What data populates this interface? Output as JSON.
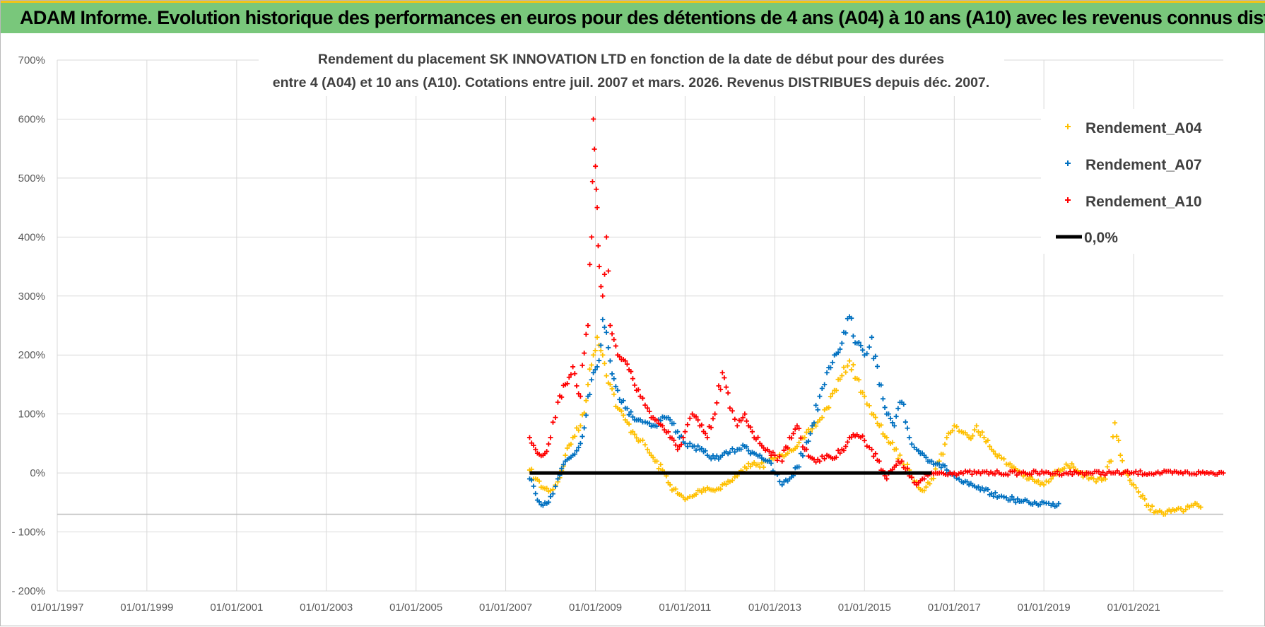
{
  "header": {
    "title": "ADAM Informe. Evolution historique des performances en euros pour des détentions de 4 ans (A04) à 10 ans (A10) avec les revenus connus distribués"
  },
  "chart_data": {
    "type": "scatter",
    "title_line1": "Rendement du placement SK INNOVATION LTD en fonction de la date de début pour des durées",
    "title_line2": "entre 4 (A04) et 10 ans (A10).  Cotations entre juil. 2007 et mars. 2026. Revenus DISTRIBUES depuis déc. 2007.",
    "xlabel": "",
    "ylabel": "",
    "x_range": [
      "1997-01-01",
      "2023-01-01"
    ],
    "x_tick_labels": [
      "01/01/1997",
      "01/01/1999",
      "01/01/2001",
      "01/01/2003",
      "01/01/2005",
      "01/01/2007",
      "01/01/2009",
      "01/01/2011",
      "01/01/2013",
      "01/01/2015",
      "01/01/2017",
      "01/01/2019",
      "01/01/2021"
    ],
    "y_range": [
      -200,
      700
    ],
    "y_tick_values": [
      -200,
      -100,
      0,
      100,
      200,
      300,
      400,
      500,
      600,
      700
    ],
    "y_tick_labels": [
      "- 200%",
      "- 100%",
      "0%",
      "100%",
      "200%",
      "300%",
      "400%",
      "500%",
      "600%",
      "700%"
    ],
    "grid": true,
    "legend_position": "top-right",
    "legend": [
      "Rendement_A04",
      "Rendement_A07",
      "Rendement_A10",
      "0,0%"
    ],
    "series": [
      {
        "name": "Rendement_A04",
        "color": "#ffc000",
        "marker": "plus",
        "points": [
          [
            "2007-07-15",
            5
          ],
          [
            "2007-09-01",
            -10
          ],
          [
            "2007-11-01",
            -25
          ],
          [
            "2008-01-01",
            -30
          ],
          [
            "2008-03-01",
            -15
          ],
          [
            "2008-05-01",
            30
          ],
          [
            "2008-07-01",
            60
          ],
          [
            "2008-09-01",
            80
          ],
          [
            "2008-11-01",
            150
          ],
          [
            "2008-12-15",
            200
          ],
          [
            "2009-01-15",
            230
          ],
          [
            "2009-03-01",
            200
          ],
          [
            "2009-05-01",
            150
          ],
          [
            "2009-07-01",
            110
          ],
          [
            "2009-09-01",
            90
          ],
          [
            "2009-11-01",
            70
          ],
          [
            "2010-01-01",
            55
          ],
          [
            "2010-03-01",
            40
          ],
          [
            "2010-05-01",
            20
          ],
          [
            "2010-07-01",
            5
          ],
          [
            "2010-09-01",
            -20
          ],
          [
            "2010-11-01",
            -35
          ],
          [
            "2011-01-01",
            -45
          ],
          [
            "2011-03-01",
            -40
          ],
          [
            "2011-05-01",
            -30
          ],
          [
            "2011-07-01",
            -25
          ],
          [
            "2011-09-01",
            -30
          ],
          [
            "2011-11-01",
            -20
          ],
          [
            "2012-01-01",
            -15
          ],
          [
            "2012-03-01",
            -5
          ],
          [
            "2012-05-01",
            10
          ],
          [
            "2012-07-01",
            15
          ],
          [
            "2012-09-01",
            10
          ],
          [
            "2012-11-01",
            20
          ],
          [
            "2013-01-01",
            25
          ],
          [
            "2013-03-01",
            30
          ],
          [
            "2013-05-01",
            40
          ],
          [
            "2013-07-01",
            45
          ],
          [
            "2013-09-01",
            60
          ],
          [
            "2013-11-01",
            75
          ],
          [
            "2014-01-01",
            90
          ],
          [
            "2014-03-01",
            110
          ],
          [
            "2014-05-01",
            140
          ],
          [
            "2014-07-01",
            165
          ],
          [
            "2014-09-01",
            190
          ],
          [
            "2014-11-01",
            160
          ],
          [
            "2015-01-01",
            130
          ],
          [
            "2015-03-01",
            100
          ],
          [
            "2015-05-01",
            80
          ],
          [
            "2015-07-01",
            60
          ],
          [
            "2015-09-01",
            40
          ],
          [
            "2015-11-01",
            20
          ],
          [
            "2016-01-01",
            5
          ],
          [
            "2016-03-01",
            -15
          ],
          [
            "2016-05-01",
            -30
          ],
          [
            "2016-07-01",
            -10
          ],
          [
            "2016-09-01",
            20
          ],
          [
            "2016-11-01",
            60
          ],
          [
            "2017-01-01",
            80
          ],
          [
            "2017-03-01",
            70
          ],
          [
            "2017-05-01",
            60
          ],
          [
            "2017-07-01",
            80
          ],
          [
            "2017-09-01",
            60
          ],
          [
            "2017-11-01",
            40
          ],
          [
            "2018-01-01",
            30
          ],
          [
            "2018-03-01",
            15
          ],
          [
            "2018-05-01",
            10
          ],
          [
            "2018-07-01",
            0
          ],
          [
            "2018-09-01",
            -10
          ],
          [
            "2018-11-01",
            -15
          ],
          [
            "2019-01-01",
            -20
          ],
          [
            "2019-03-01",
            -10
          ],
          [
            "2019-05-01",
            5
          ],
          [
            "2019-07-01",
            15
          ],
          [
            "2019-09-01",
            10
          ],
          [
            "2019-11-01",
            0
          ],
          [
            "2020-01-01",
            -10
          ],
          [
            "2020-03-01",
            -15
          ],
          [
            "2020-05-01",
            -10
          ],
          [
            "2020-07-01",
            20
          ],
          [
            "2020-08-01",
            85
          ],
          [
            "2020-09-15",
            30
          ],
          [
            "2020-11-01",
            0
          ],
          [
            "2021-01-01",
            -20
          ],
          [
            "2021-03-01",
            -40
          ],
          [
            "2021-05-01",
            -55
          ],
          [
            "2021-07-01",
            -65
          ],
          [
            "2021-09-01",
            -70
          ],
          [
            "2021-11-01",
            -65
          ],
          [
            "2022-01-01",
            -60
          ],
          [
            "2022-03-01",
            -62
          ],
          [
            "2022-05-01",
            -55
          ],
          [
            "2022-07-01",
            -58
          ]
        ]
      },
      {
        "name": "Rendement_A07",
        "color": "#0070c0",
        "marker": "plus",
        "points": [
          [
            "2007-07-15",
            -10
          ],
          [
            "2007-09-01",
            -35
          ],
          [
            "2007-11-01",
            -55
          ],
          [
            "2008-01-01",
            -40
          ],
          [
            "2008-03-01",
            -10
          ],
          [
            "2008-05-01",
            20
          ],
          [
            "2008-07-01",
            30
          ],
          [
            "2008-09-01",
            50
          ],
          [
            "2008-11-01",
            130
          ],
          [
            "2008-12-15",
            170
          ],
          [
            "2009-01-15",
            180
          ],
          [
            "2009-03-01",
            260
          ],
          [
            "2009-05-01",
            190
          ],
          [
            "2009-07-01",
            140
          ],
          [
            "2009-09-01",
            110
          ],
          [
            "2009-11-01",
            95
          ],
          [
            "2010-01-01",
            90
          ],
          [
            "2010-03-01",
            85
          ],
          [
            "2010-05-01",
            80
          ],
          [
            "2010-07-01",
            95
          ],
          [
            "2010-09-01",
            90
          ],
          [
            "2010-11-01",
            70
          ],
          [
            "2011-01-01",
            50
          ],
          [
            "2011-03-01",
            45
          ],
          [
            "2011-05-01",
            40
          ],
          [
            "2011-07-01",
            30
          ],
          [
            "2011-09-01",
            25
          ],
          [
            "2011-11-01",
            30
          ],
          [
            "2012-01-01",
            35
          ],
          [
            "2012-03-01",
            40
          ],
          [
            "2012-05-01",
            45
          ],
          [
            "2012-07-01",
            35
          ],
          [
            "2012-09-01",
            30
          ],
          [
            "2012-11-01",
            20
          ],
          [
            "2013-01-01",
            0
          ],
          [
            "2013-03-01",
            -20
          ],
          [
            "2013-05-01",
            -10
          ],
          [
            "2013-07-01",
            10
          ],
          [
            "2013-09-01",
            40
          ],
          [
            "2013-11-01",
            80
          ],
          [
            "2014-01-01",
            130
          ],
          [
            "2014-03-01",
            170
          ],
          [
            "2014-05-01",
            200
          ],
          [
            "2014-07-01",
            220
          ],
          [
            "2014-09-01",
            265
          ],
          [
            "2014-11-01",
            220
          ],
          [
            "2015-01-01",
            200
          ],
          [
            "2015-03-01",
            230
          ],
          [
            "2015-05-01",
            150
          ],
          [
            "2015-07-01",
            100
          ],
          [
            "2015-09-01",
            80
          ],
          [
            "2015-11-01",
            120
          ],
          [
            "2016-01-01",
            60
          ],
          [
            "2016-03-01",
            40
          ],
          [
            "2016-05-01",
            30
          ],
          [
            "2016-07-01",
            20
          ],
          [
            "2016-09-01",
            15
          ],
          [
            "2016-11-01",
            5
          ],
          [
            "2017-01-01",
            -5
          ],
          [
            "2017-03-01",
            -15
          ],
          [
            "2017-05-01",
            -20
          ],
          [
            "2017-07-01",
            -25
          ],
          [
            "2017-09-01",
            -30
          ],
          [
            "2017-11-01",
            -35
          ],
          [
            "2018-01-01",
            -40
          ],
          [
            "2018-03-01",
            -42
          ],
          [
            "2018-05-01",
            -45
          ],
          [
            "2018-07-01",
            -48
          ],
          [
            "2018-09-01",
            -50
          ],
          [
            "2018-11-01",
            -52
          ],
          [
            "2019-01-01",
            -50
          ],
          [
            "2019-03-01",
            -55
          ],
          [
            "2019-05-01",
            -52
          ]
        ]
      },
      {
        "name": "Rendement_A10",
        "color": "#ff0000",
        "marker": "plus",
        "points": [
          [
            "2007-07-15",
            60
          ],
          [
            "2007-09-01",
            40
          ],
          [
            "2007-11-01",
            30
          ],
          [
            "2008-01-01",
            60
          ],
          [
            "2008-03-01",
            120
          ],
          [
            "2008-05-01",
            150
          ],
          [
            "2008-07-01",
            180
          ],
          [
            "2008-09-01",
            130
          ],
          [
            "2008-11-01",
            250
          ],
          [
            "2008-12-01",
            400
          ],
          [
            "2008-12-15",
            600
          ],
          [
            "2009-01-01",
            520
          ],
          [
            "2009-01-15",
            450
          ],
          [
            "2009-02-01",
            350
          ],
          [
            "2009-03-01",
            300
          ],
          [
            "2009-04-01",
            400
          ],
          [
            "2009-05-01",
            250
          ],
          [
            "2009-07-01",
            200
          ],
          [
            "2009-09-01",
            190
          ],
          [
            "2009-11-01",
            160
          ],
          [
            "2010-01-01",
            130
          ],
          [
            "2010-03-01",
            110
          ],
          [
            "2010-05-01",
            90
          ],
          [
            "2010-07-01",
            80
          ],
          [
            "2010-09-01",
            60
          ],
          [
            "2010-11-01",
            40
          ],
          [
            "2011-01-01",
            70
          ],
          [
            "2011-03-01",
            100
          ],
          [
            "2011-05-01",
            80
          ],
          [
            "2011-07-01",
            60
          ],
          [
            "2011-09-01",
            100
          ],
          [
            "2011-11-01",
            170
          ],
          [
            "2012-01-01",
            110
          ],
          [
            "2012-03-01",
            80
          ],
          [
            "2012-05-01",
            100
          ],
          [
            "2012-07-01",
            70
          ],
          [
            "2012-09-01",
            50
          ],
          [
            "2012-11-01",
            40
          ],
          [
            "2013-01-01",
            30
          ],
          [
            "2013-03-01",
            20
          ],
          [
            "2013-05-01",
            60
          ],
          [
            "2013-07-01",
            80
          ],
          [
            "2013-09-01",
            40
          ],
          [
            "2013-11-01",
            25
          ],
          [
            "2014-01-01",
            20
          ],
          [
            "2014-03-01",
            30
          ],
          [
            "2014-05-01",
            25
          ],
          [
            "2014-07-01",
            40
          ],
          [
            "2014-09-01",
            60
          ],
          [
            "2014-11-01",
            65
          ],
          [
            "2015-01-01",
            55
          ],
          [
            "2015-03-01",
            40
          ],
          [
            "2015-05-01",
            20
          ],
          [
            "2015-07-01",
            -10
          ],
          [
            "2015-09-01",
            10
          ],
          [
            "2015-11-01",
            20
          ],
          [
            "2016-01-01",
            -5
          ],
          [
            "2016-03-01",
            -20
          ],
          [
            "2016-05-01",
            -10
          ],
          [
            "2016-07-01",
            0
          ],
          [
            "2016-09-01",
            0
          ],
          [
            "2017-01-01",
            0
          ],
          [
            "2017-07-01",
            0
          ],
          [
            "2018-01-01",
            0
          ],
          [
            "2018-07-01",
            0
          ],
          [
            "2019-01-01",
            0
          ],
          [
            "2019-07-01",
            0
          ],
          [
            "2020-01-01",
            0
          ],
          [
            "2020-07-01",
            0
          ],
          [
            "2021-01-01",
            0
          ],
          [
            "2021-07-01",
            0
          ],
          [
            "2022-01-01",
            0
          ],
          [
            "2022-07-01",
            0
          ],
          [
            "2023-01-01",
            0
          ]
        ]
      },
      {
        "name": "0,0%",
        "color": "#000000",
        "marker": "line",
        "points": [
          [
            "2007-07-15",
            0
          ],
          [
            "2016-07-01",
            0
          ]
        ]
      }
    ]
  }
}
